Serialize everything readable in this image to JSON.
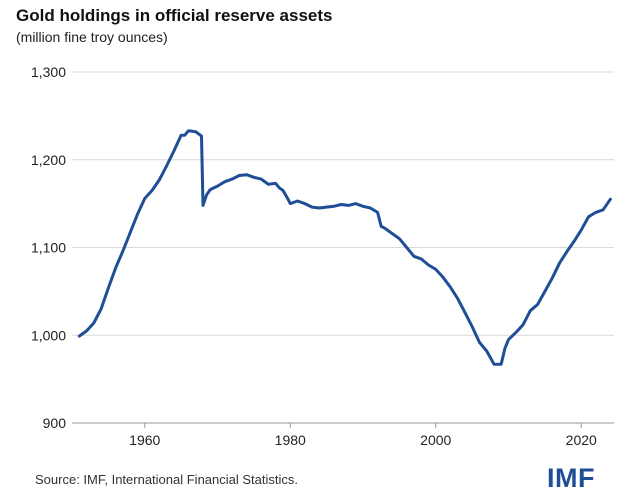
{
  "title": "Gold holdings in official reserve assets",
  "subtitle": "(million fine troy ounces)",
  "source": "Source: IMF, International Financial Statistics.",
  "logo": "IMF",
  "colors": {
    "line": "#1f4e96",
    "grid": "#d9d9d9",
    "axis": "#999999",
    "logo": "#1f4e96"
  },
  "chart_data": {
    "type": "line",
    "title": "Gold holdings in official reserve assets",
    "subtitle": "(million fine troy ounces)",
    "xlim": [
      1950,
      2024.5
    ],
    "ylim": [
      900,
      1300
    ],
    "x_ticks": [
      1960,
      1980,
      2000,
      2020
    ],
    "y_ticks": [
      900,
      1000,
      1100,
      1200,
      1300
    ],
    "y_tick_labels": [
      "900",
      "1,000",
      "1,100",
      "1,200",
      "1,300"
    ],
    "grid": "horizontal",
    "series": [
      {
        "x": [
          1951,
          1952,
          1953,
          1954,
          1955,
          1956,
          1957,
          1958,
          1959,
          1960,
          1961,
          1962,
          1963,
          1964,
          1965,
          1965.5,
          1966,
          1967,
          1967.8,
          1968,
          1968.5,
          1969,
          1970,
          1971,
          1972,
          1973,
          1974,
          1975,
          1976,
          1977,
          1978,
          1978.5,
          1979,
          1979.5,
          1980,
          1981,
          1982,
          1983,
          1984,
          1985,
          1986,
          1987,
          1988,
          1989,
          1990,
          1991,
          1992,
          1992.5,
          1993,
          1994,
          1995,
          1996,
          1997,
          1998,
          1999,
          2000,
          2001,
          2002,
          2003,
          2004,
          2005,
          2006,
          2007,
          2008,
          2008.5,
          2009,
          2009.5,
          2010,
          2011,
          2012,
          2013,
          2014,
          2015,
          2016,
          2017,
          2018,
          2019,
          2020,
          2021,
          2022,
          2023,
          2024
        ],
        "values": [
          999,
          1005,
          1014,
          1030,
          1054,
          1077,
          1096,
          1117,
          1138,
          1156,
          1165,
          1177,
          1193,
          1210,
          1228,
          1228,
          1233,
          1232,
          1227,
          1148,
          1160,
          1166,
          1170,
          1175,
          1178,
          1182,
          1183,
          1180,
          1178,
          1172,
          1173,
          1168,
          1165,
          1158,
          1150,
          1153,
          1150,
          1146,
          1145,
          1146,
          1147,
          1149,
          1148,
          1150,
          1147,
          1145,
          1140,
          1124,
          1122,
          1116,
          1110,
          1100,
          1090,
          1087,
          1080,
          1075,
          1066,
          1055,
          1042,
          1026,
          1010,
          992,
          982,
          967,
          967,
          967,
          985,
          995,
          1003,
          1012,
          1028,
          1035,
          1050,
          1065,
          1082,
          1095,
          1107,
          1120,
          1135,
          1140,
          1143,
          1155
        ]
      }
    ]
  }
}
